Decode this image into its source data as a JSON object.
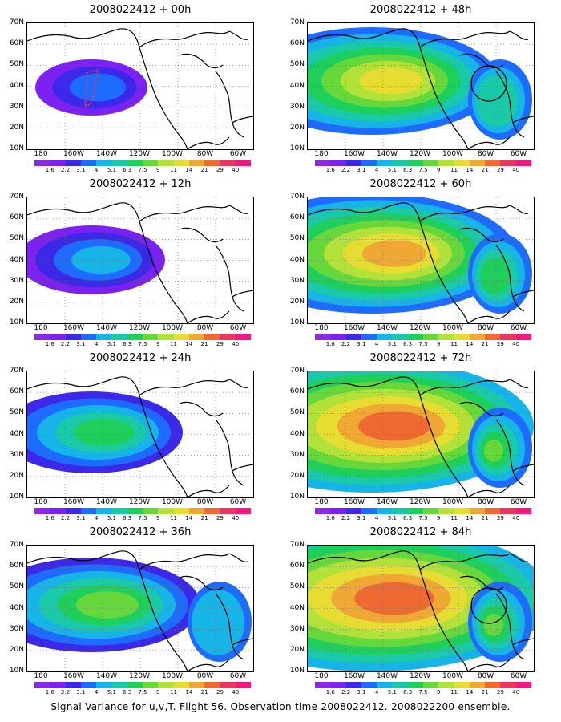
{
  "panels": [
    {
      "title": "2008022412 + 00h",
      "level": 0,
      "circle": false,
      "box": true
    },
    {
      "title": "2008022412 + 48h",
      "level": 4,
      "circle": true,
      "box": false
    },
    {
      "title": "2008022412 + 12h",
      "level": 1,
      "circle": false,
      "box": false
    },
    {
      "title": "2008022412 + 60h",
      "level": 5,
      "circle": false,
      "box": false
    },
    {
      "title": "2008022412 + 24h",
      "level": 2,
      "circle": false,
      "box": false
    },
    {
      "title": "2008022412 + 72h",
      "level": 6,
      "circle": false,
      "box": false
    },
    {
      "title": "2008022412 + 36h",
      "level": 3,
      "circle": false,
      "box": false
    },
    {
      "title": "2008022412 + 84h",
      "level": 7,
      "circle": true,
      "box": false
    }
  ],
  "lat_labels": [
    "70N",
    "60N",
    "50N",
    "40N",
    "30N",
    "20N",
    "10N"
  ],
  "lon_labels": [
    "180",
    "160W",
    "140W",
    "120W",
    "100W",
    "80W",
    "60W"
  ],
  "colorbar": {
    "labels": [
      "1.6",
      "2.2",
      "3.1",
      "4",
      "5.1",
      "6.3",
      "7.5",
      "9",
      "11",
      "14",
      "21",
      "29",
      "40"
    ],
    "colors": [
      "#8a2be2",
      "#7b22f0",
      "#3c28e8",
      "#1e6bff",
      "#17b4e8",
      "#19c9a8",
      "#1fcf5c",
      "#67d83c",
      "#b2e23a",
      "#e6dc32",
      "#f0a834",
      "#ef6a32",
      "#e8385e",
      "#f0197d"
    ]
  },
  "caption": "Signal Variance for u,v,T. Flight 56. Observation time 2008022412. 2008022200 ensemble."
}
